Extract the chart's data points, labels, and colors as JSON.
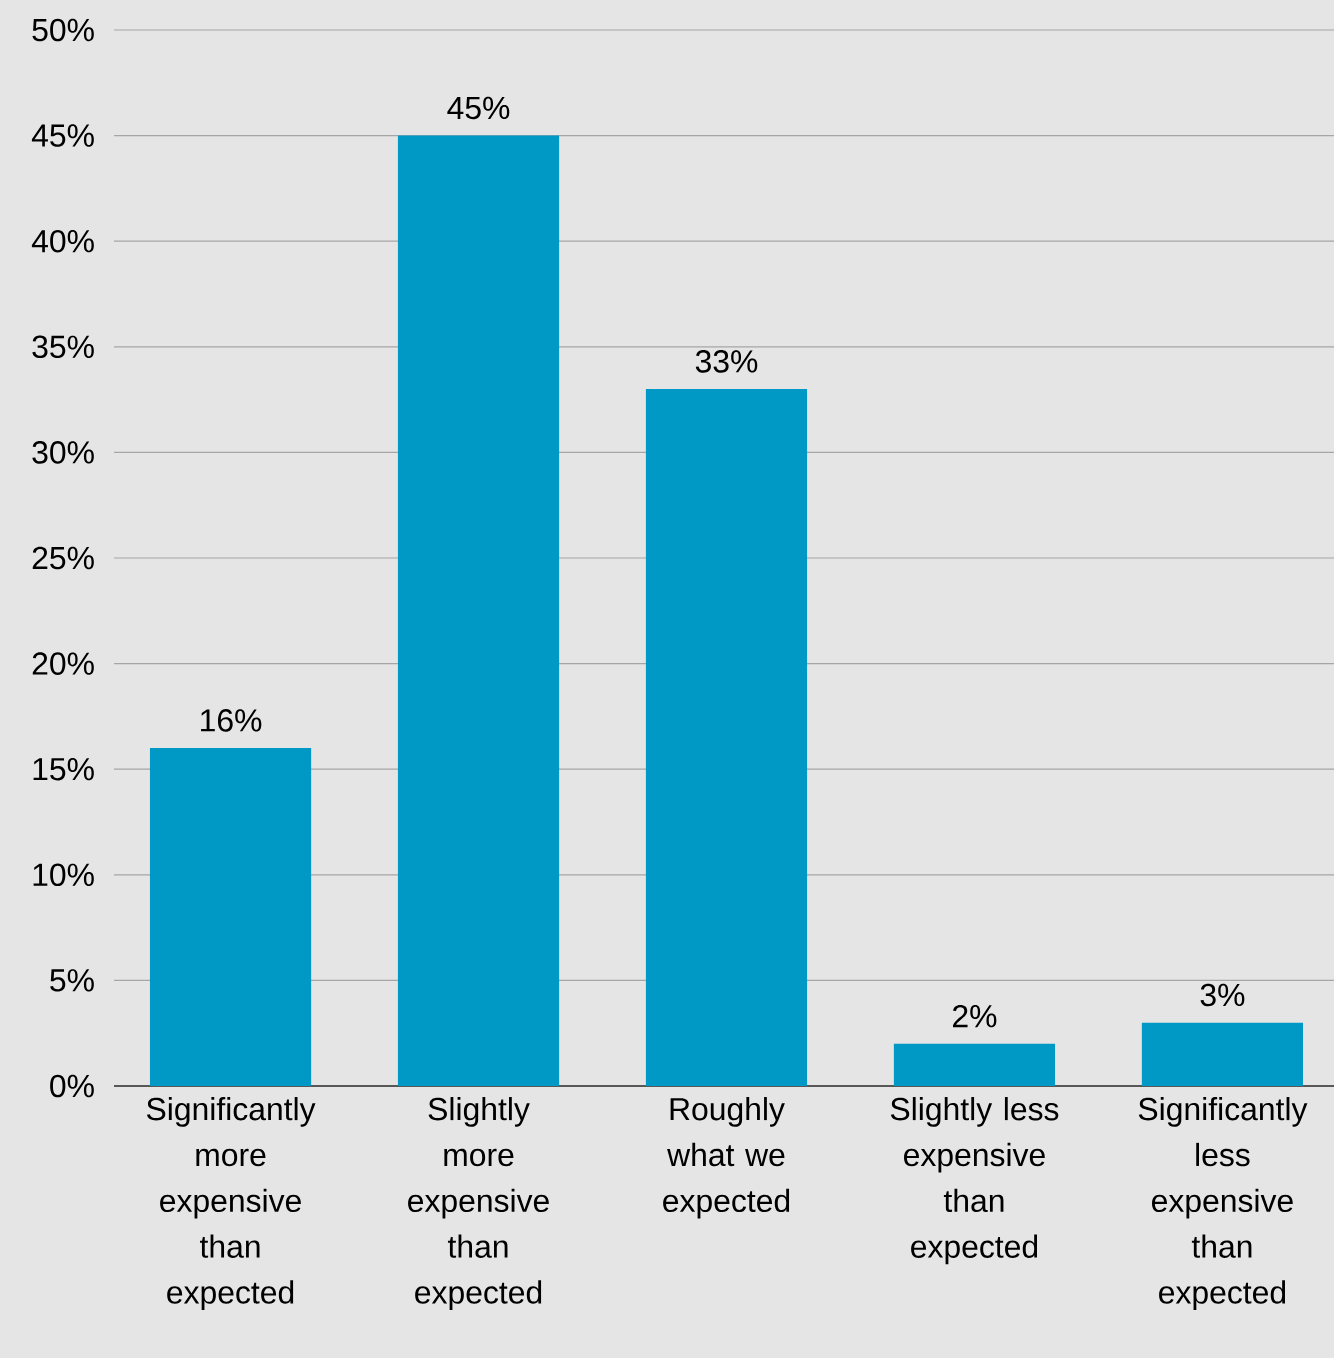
{
  "chart_data": {
    "type": "bar",
    "categories": [
      "Significantly more expensive than expected",
      "Slightly more expensive than expected",
      "Roughly what we expected",
      "Slightly less expensive than expected",
      "Significantly less expensive than expected"
    ],
    "values": [
      16,
      45,
      33,
      2,
      3
    ],
    "value_labels": [
      "16%",
      "45%",
      "33%",
      "2%",
      "3%"
    ],
    "color": "#0099c6",
    "ylim": [
      0,
      50
    ],
    "yticks": [
      {
        "value": 0,
        "label": "0%"
      },
      {
        "value": 5,
        "label": "5%"
      },
      {
        "value": 10,
        "label": "10%"
      },
      {
        "value": 15,
        "label": "15%"
      },
      {
        "value": 20,
        "label": "20%"
      },
      {
        "value": 25,
        "label": "25%"
      },
      {
        "value": 30,
        "label": "30%"
      },
      {
        "value": 35,
        "label": "35%"
      },
      {
        "value": 40,
        "label": "40%"
      },
      {
        "value": 45,
        "label": "45%"
      },
      {
        "value": 50,
        "label": "50%"
      }
    ],
    "grid": "y"
  }
}
